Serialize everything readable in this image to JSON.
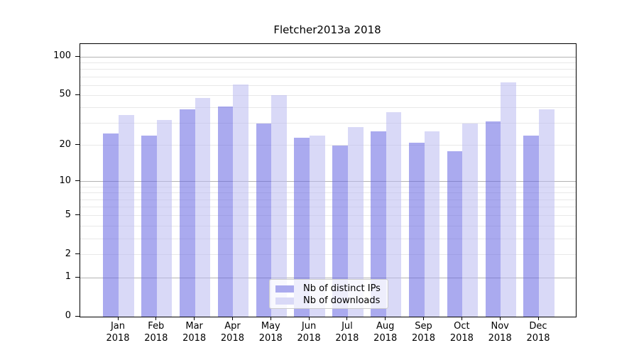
{
  "chart_data": {
    "type": "bar",
    "title": "Fletcher2013a 2018",
    "categories": [
      "Jan",
      "Feb",
      "Mar",
      "Apr",
      "May",
      "Jun",
      "Jul",
      "Aug",
      "Sep",
      "Oct",
      "Nov",
      "Dec"
    ],
    "category_year": "2018",
    "series": [
      {
        "name": "Nb of distinct IPs",
        "color": "#aaaaee",
        "fill": "rgba(100,100,225,0.55)",
        "values": [
          25,
          24,
          39,
          41,
          30,
          23,
          20,
          26,
          21,
          18,
          31,
          24
        ]
      },
      {
        "name": "Nb of downloads",
        "color": "#d9d9f7",
        "fill": "rgba(186,186,240,0.55)",
        "values": [
          35,
          32,
          48,
          61,
          50,
          24,
          28,
          37,
          26,
          30,
          63,
          39
        ]
      }
    ],
    "yscale": "log1p",
    "ylim": [
      0,
      126
    ],
    "yticks": [
      0,
      1,
      2,
      5,
      10,
      20,
      50,
      100
    ],
    "major_gridlines": [
      1,
      10,
      100
    ],
    "minor_gridlines": [
      2,
      3,
      4,
      5,
      6,
      7,
      8,
      9,
      20,
      30,
      40,
      50,
      60,
      70,
      80,
      90
    ],
    "grid": true,
    "legend_position": "lower center"
  },
  "colors": {
    "major_grid": "#b3b3b3",
    "minor_grid": "#e8e8e8",
    "spine": "#000000",
    "text": "#000000",
    "legend_border": "#cccccc"
  }
}
